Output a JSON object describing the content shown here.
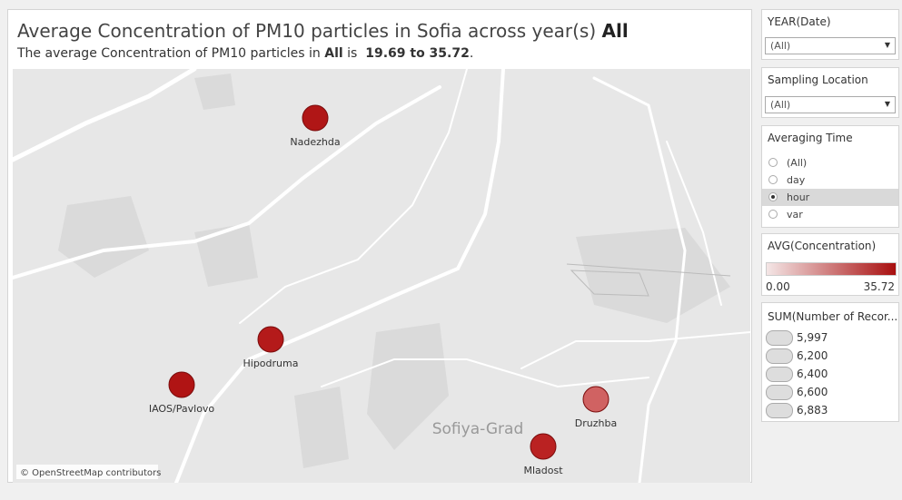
{
  "header": {
    "title": "Average Concentration of PM10 particles in Sofia across year(s)",
    "title_selection": "All",
    "subtitle_start": "The average Concentration of PM10 particles in",
    "subtitle_selection": "All",
    "subtitle_is": "is",
    "subtitle_range": "19.69 to 35.72",
    "subtitle_end": "."
  },
  "map": {
    "region_label": "Sofiya-Grad",
    "attribution": "© OpenStreetMap contributors",
    "stations": [
      {
        "name": "Nadezhda",
        "color": "#b01616"
      },
      {
        "name": "Hipodruma",
        "color": "#b41a1a"
      },
      {
        "name": "IAOS/Pavlovo",
        "color": "#b01414"
      },
      {
        "name": "Druzhba",
        "color": "#d06262"
      },
      {
        "name": "Mladost",
        "color": "#ba2222"
      }
    ]
  },
  "filters": {
    "year": {
      "title": "YEAR(Date)",
      "value": "(All)"
    },
    "location": {
      "title": "Sampling Location",
      "value": "(All)"
    },
    "averaging_time": {
      "title": "Averaging Time",
      "options": [
        "(All)",
        "day",
        "hour",
        "var"
      ],
      "selected": "hour"
    }
  },
  "color_legend": {
    "title": "AVG(Concentration)",
    "min_label": "0.00",
    "max_label": "35.72",
    "color_low": "#f4e6e6",
    "color_high": "#a80f0f"
  },
  "size_legend": {
    "title": "SUM(Number of Recor...",
    "items": [
      "5,997",
      "6,200",
      "6,400",
      "6,600",
      "6,883"
    ]
  }
}
